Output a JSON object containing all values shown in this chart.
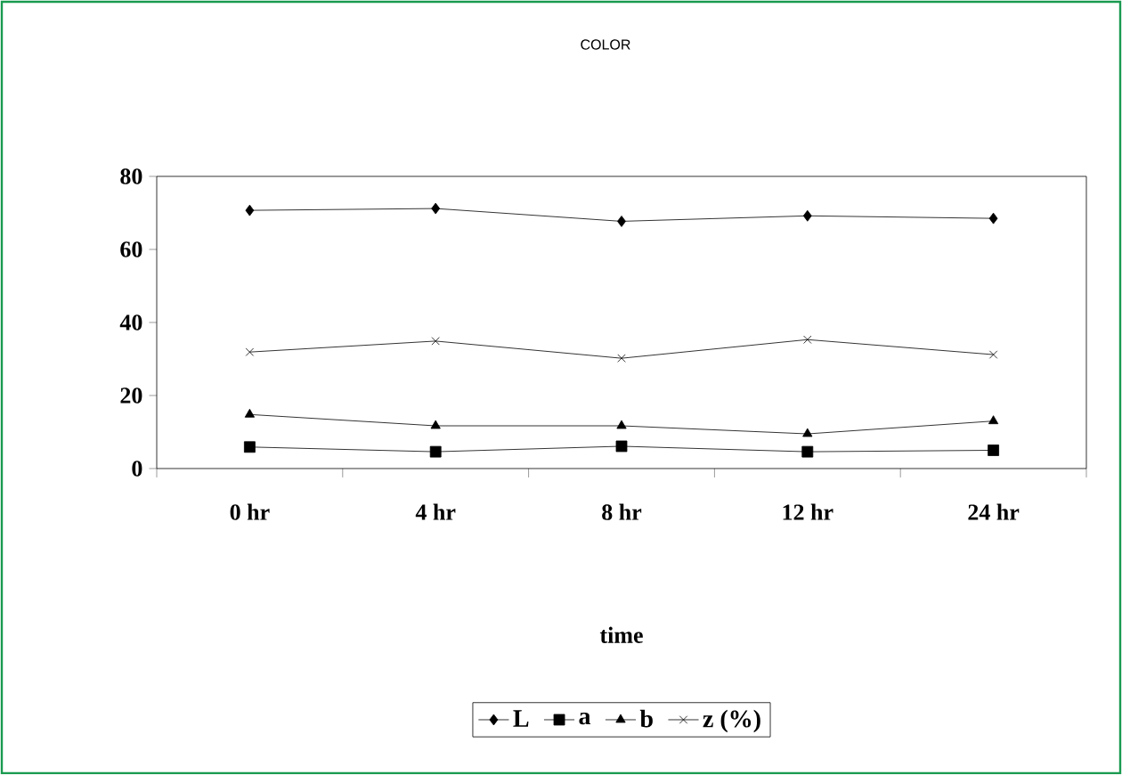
{
  "chart_data": {
    "type": "line",
    "title": "COLOR",
    "xlabel": "time",
    "categories": [
      "0 hr",
      "4 hr",
      "8 hr",
      "12 hr",
      "24 hr"
    ],
    "ylim": [
      0,
      80
    ],
    "yticks": [
      0,
      20,
      40,
      60,
      80
    ],
    "legend": "bottom",
    "grid": false,
    "line_style": "solid",
    "series": [
      {
        "name": "L",
        "color": "#000000",
        "marker": "diamond",
        "values": [
          70.7,
          71.2,
          67.7,
          69.2,
          68.5
        ]
      },
      {
        "name": "a",
        "color": "#000000",
        "marker": "square",
        "values": [
          5.9,
          4.6,
          6.1,
          4.6,
          5.0
        ]
      },
      {
        "name": "b",
        "color": "#000000",
        "marker": "triangle",
        "values": [
          14.8,
          11.7,
          11.7,
          9.5,
          13.0
        ]
      },
      {
        "name": "z (%)",
        "color": "#000000",
        "marker": "cross",
        "values": [
          31.9,
          34.9,
          30.2,
          35.3,
          31.2
        ]
      }
    ]
  }
}
